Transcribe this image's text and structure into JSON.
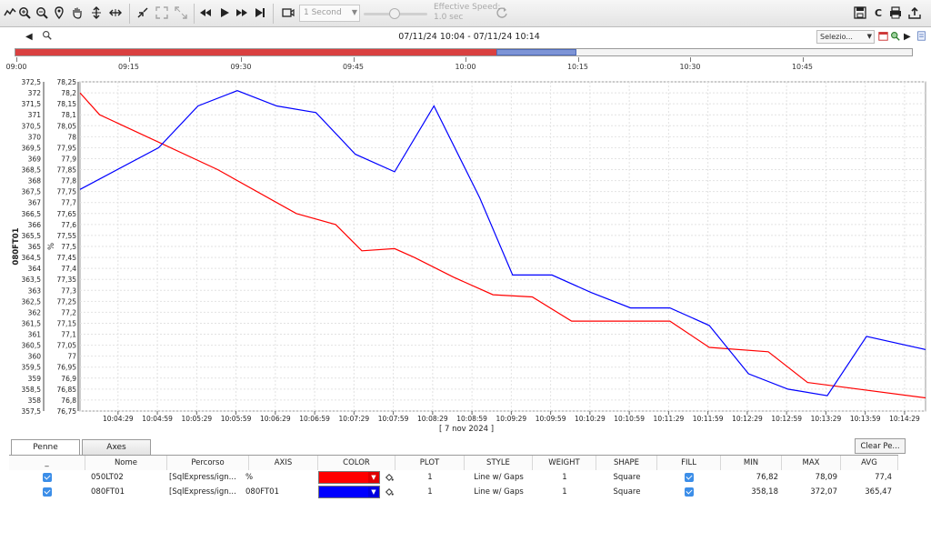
{
  "toolbar": {
    "speed_value": "1 Second",
    "effective_speed_label": "Effective Speed:",
    "effective_speed_value": "1.0 sec",
    "buttons": [
      {
        "icon": "trend-icon"
      },
      {
        "icon": "zoom-in-icon"
      },
      {
        "icon": "zoom-out-icon"
      },
      {
        "icon": "pin-icon"
      },
      {
        "icon": "hand-icon"
      },
      {
        "icon": "vertical-arrows-icon"
      },
      {
        "icon": "horizontal-arrows-icon"
      },
      {
        "icon": "collapse-icon"
      },
      {
        "icon": "expand-icon"
      },
      {
        "icon": "fullscreen-icon"
      },
      {
        "icon": "rewind-icon"
      },
      {
        "icon": "play-icon"
      },
      {
        "icon": "fast-forward-icon"
      },
      {
        "icon": "skip-end-icon"
      },
      {
        "icon": "camera-icon"
      },
      {
        "icon": "refresh-icon"
      },
      {
        "icon": "save-icon"
      },
      {
        "icon": "letter-c-icon"
      },
      {
        "icon": "print-icon"
      },
      {
        "icon": "upload-icon"
      }
    ],
    "letter_c": "C"
  },
  "range": {
    "text": "07/11/24 10:04 - 07/11/24 10:14",
    "select_label": "Selezio..."
  },
  "overview": {
    "ticks": [
      "09:00",
      "09:15",
      "09:30",
      "09:45",
      "10:00",
      "10:15",
      "10:30",
      "10:45"
    ],
    "selection_start": 0.537,
    "selection_end": 0.626
  },
  "chart_data": {
    "type": "line",
    "xlabel": "[ 7 nov 2024 ]",
    "x_ticks": [
      "10:04:29",
      "10:04:59",
      "10:05:29",
      "10:05:59",
      "10:06:29",
      "10:06:59",
      "10:07:29",
      "10:07:59",
      "10:08:29",
      "10:08:59",
      "10:09:29",
      "10:09:59",
      "10:10:29",
      "10:10:59",
      "10:11:29",
      "10:11:59",
      "10:12:29",
      "10:12:59",
      "10:13:29",
      "10:13:59",
      "10:14:29"
    ],
    "x_start": "10:04:00",
    "x_end": "10:14:45",
    "axes": [
      {
        "name": "080FT01",
        "label": "080FT01",
        "ylim": [
          357.5,
          372.5
        ],
        "ticks": [
          "357,5",
          "358",
          "358,5",
          "359",
          "359,5",
          "360",
          "360,5",
          "361",
          "361,5",
          "362",
          "362,5",
          "363",
          "363,5",
          "364",
          "364,5",
          "365",
          "365,5",
          "366",
          "366,5",
          "367",
          "367,5",
          "368",
          "368,5",
          "369",
          "369,5",
          "370",
          "370,5",
          "371",
          "371,5",
          "372",
          "372,5"
        ]
      },
      {
        "name": "%",
        "label": "%",
        "ylim": [
          76.75,
          78.25
        ],
        "ticks": [
          "76,75",
          "76,8",
          "76,85",
          "76,9",
          "76,95",
          "77",
          "77,05",
          "77,1",
          "77,15",
          "77,2",
          "77,25",
          "77,3",
          "77,35",
          "77,4",
          "77,45",
          "77,5",
          "77,55",
          "77,6",
          "77,65",
          "77,7",
          "77,75",
          "77,8",
          "77,85",
          "77,9",
          "77,95",
          "78",
          "78,05",
          "78,1",
          "78,15",
          "78,2",
          "78,25"
        ]
      }
    ],
    "series": [
      {
        "name": "050LT02",
        "axis": "%",
        "color": "#ff0000",
        "points": [
          [
            "10:04:00",
            78.2
          ],
          [
            "10:04:15",
            78.1
          ],
          [
            "10:05:45",
            77.85
          ],
          [
            "10:06:45",
            77.65
          ],
          [
            "10:07:15",
            77.6
          ],
          [
            "10:07:35",
            77.48
          ],
          [
            "10:08:00",
            77.49
          ],
          [
            "10:08:15",
            77.45
          ],
          [
            "10:08:45",
            77.36
          ],
          [
            "10:09:15",
            77.28
          ],
          [
            "10:09:45",
            77.27
          ],
          [
            "10:10:15",
            77.16
          ],
          [
            "10:11:30",
            77.16
          ],
          [
            "10:12:00",
            77.04
          ],
          [
            "10:12:45",
            77.02
          ],
          [
            "10:13:15",
            76.88
          ],
          [
            "10:14:45",
            76.81
          ]
        ]
      },
      {
        "name": "080FT01",
        "axis": "080FT01",
        "color": "#0000ff",
        "points": [
          [
            "10:04:00",
            367.6
          ],
          [
            "10:05:00",
            369.5
          ],
          [
            "10:05:30",
            371.4
          ],
          [
            "10:06:00",
            372.1
          ],
          [
            "10:06:30",
            371.4
          ],
          [
            "10:07:00",
            371.1
          ],
          [
            "10:07:30",
            369.2
          ],
          [
            "10:08:00",
            368.4
          ],
          [
            "10:08:30",
            371.4
          ],
          [
            "10:09:00",
            367.8
          ],
          [
            "10:09:05",
            367.2
          ],
          [
            "10:09:30",
            363.7
          ],
          [
            "10:10:00",
            363.7
          ],
          [
            "10:10:30",
            362.9
          ],
          [
            "10:11:00",
            362.2
          ],
          [
            "10:11:30",
            362.2
          ],
          [
            "10:12:00",
            361.4
          ],
          [
            "10:12:30",
            359.2
          ],
          [
            "10:13:00",
            358.5
          ],
          [
            "10:13:30",
            358.2
          ],
          [
            "10:14:00",
            360.9
          ],
          [
            "10:14:45",
            360.3
          ]
        ]
      }
    ],
    "grid": true
  },
  "tabs": {
    "pens": "Penne",
    "axes": "Axes",
    "clear": "Clear Pe..."
  },
  "table": {
    "headers": [
      "_",
      "Nome",
      "Percorso",
      "AXIS",
      "COLOR",
      "PLOT",
      "STYLE",
      "WEIGHT",
      "SHAPE",
      "FILL",
      "MIN",
      "MAX",
      "AVG"
    ],
    "rows": [
      {
        "nome": "050LT02",
        "percorso": "[SqlExpress/ign...",
        "axis": "%",
        "color": "#ff0000",
        "plot": "1",
        "style": "Line w/ Gaps",
        "weight": "1",
        "shape": "Square",
        "min": "76,82",
        "max": "78,09",
        "avg": "77,4"
      },
      {
        "nome": "080FT01",
        "percorso": "[SqlExpress/ign...",
        "axis": "080FT01",
        "color": "#0000ff",
        "plot": "1",
        "style": "Line w/ Gaps",
        "weight": "1",
        "shape": "Square",
        "min": "358,18",
        "max": "372,07",
        "avg": "365,47"
      }
    ]
  }
}
